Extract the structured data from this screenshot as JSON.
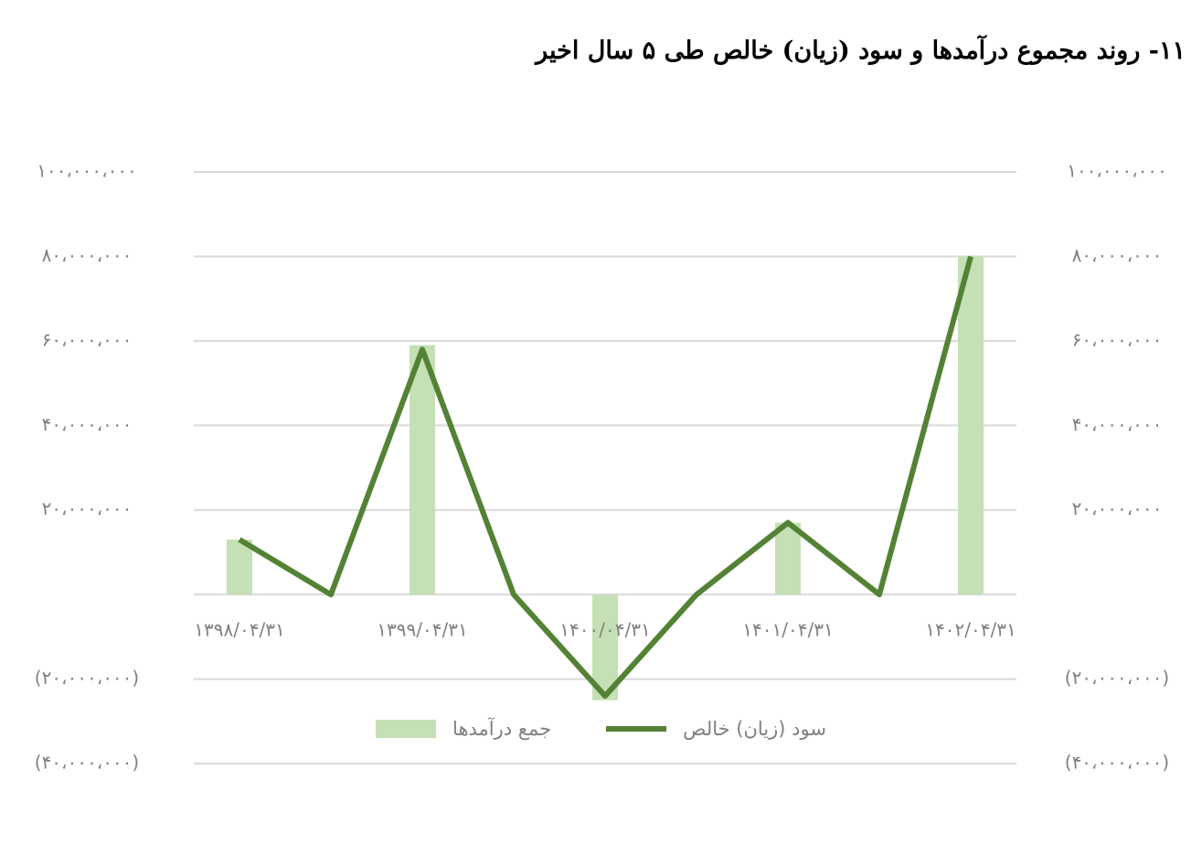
{
  "chart_data": {
    "type": "bar",
    "title": "۱۱- روند مجموع درآمدها و سود (زیان) خالص طی ۵ سال اخیر",
    "categories": [
      "۱۳۹۸/۰۴/۳۱",
      null,
      "۱۳۹۹/۰۴/۳۱",
      null,
      "۱۴۰۰/۰۴/۳۱",
      null,
      "۱۴۰۱/۰۴/۳۱",
      null,
      "۱۴۰۲/۰۴/۳۱"
    ],
    "series": [
      {
        "name": "جمع درآمدها",
        "type": "bar",
        "color": "#c5e0b4",
        "values": [
          13000000,
          null,
          59000000,
          null,
          -25000000,
          null,
          17000000,
          null,
          80000000
        ]
      },
      {
        "name": "سود (زیان) خالص",
        "type": "line",
        "color": "#548235",
        "axis": "y2",
        "values": [
          13000000,
          0,
          58000000,
          0,
          -24000000,
          0,
          17000000,
          0,
          80000000
        ]
      }
    ],
    "ylim": [
      -40000000,
      100000000
    ],
    "yticks": [
      {
        "value": 100000000,
        "label": "۱۰۰،۰۰۰،۰۰۰"
      },
      {
        "value": 80000000,
        "label": "۸۰،۰۰۰،۰۰۰"
      },
      {
        "value": 60000000,
        "label": "۶۰،۰۰۰،۰۰۰"
      },
      {
        "value": 40000000,
        "label": "۴۰،۰۰۰،۰۰۰"
      },
      {
        "value": 20000000,
        "label": "۲۰،۰۰۰،۰۰۰"
      },
      {
        "value": -20000000,
        "label": "(۲۰،۰۰۰،۰۰۰)"
      },
      {
        "value": -40000000,
        "label": "(۴۰،۰۰۰،۰۰۰)"
      }
    ],
    "y2lim": [
      -40000000,
      100000000
    ],
    "y2ticks": [
      {
        "value": 100000000,
        "label": "۱۰۰،۰۰۰،۰۰۰"
      },
      {
        "value": 80000000,
        "label": "۸۰،۰۰۰،۰۰۰"
      },
      {
        "value": 60000000,
        "label": "۶۰،۰۰۰،۰۰۰"
      },
      {
        "value": 40000000,
        "label": "۴۰،۰۰۰،۰۰۰"
      },
      {
        "value": 20000000,
        "label": "۲۰،۰۰۰،۰۰۰"
      },
      {
        "value": -20000000,
        "label": "(۲۰،۰۰۰،۰۰۰)"
      },
      {
        "value": -40000000,
        "label": "(۴۰،۰۰۰،۰۰۰)"
      }
    ],
    "grid": true,
    "legend": "bottom"
  }
}
